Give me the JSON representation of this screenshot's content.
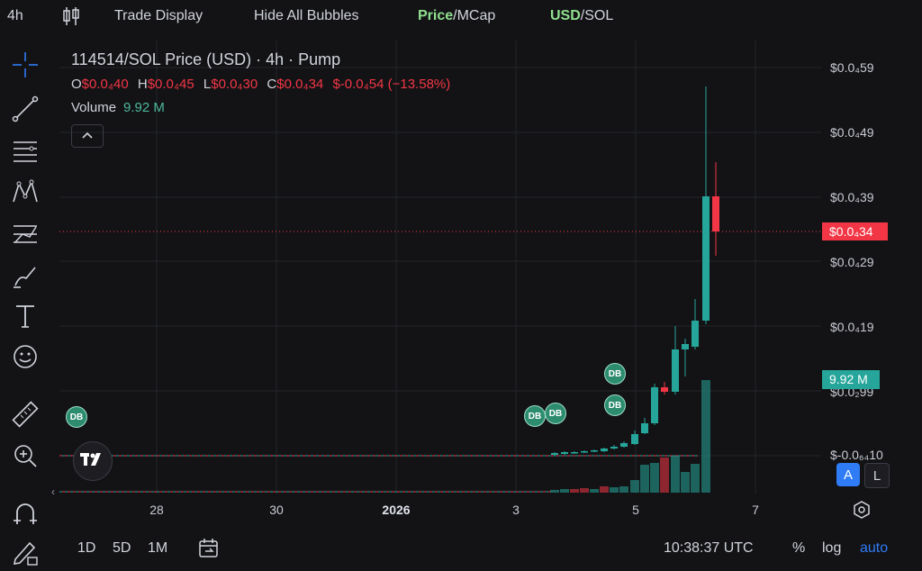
{
  "topbar": {
    "interval": "4h",
    "trade_display": "Trade Display",
    "hide_bubbles": "Hide All Bubbles",
    "price": "Price",
    "mcap": "/MCap",
    "usd": "USD",
    "sol": "/SOL"
  },
  "tools": [
    "crosshair-icon",
    "trend-line-icon",
    "fib-icon",
    "pattern-icon",
    "prediction-icon",
    "brush-icon",
    "text-icon",
    "emoji-icon",
    "ruler-icon",
    "zoom-icon",
    "magnet-icon",
    "lock-draw-icon"
  ],
  "legend": {
    "title": "114514/SOL Price (USD) · 4h · Pump",
    "o_label": "O",
    "o_value": "$0.0₄40",
    "h_label": "H",
    "h_value": "$0.0₄45",
    "l_label": "L",
    "l_value": "$0.0₄30",
    "c_label": "C",
    "c_value": "$0.0₄34",
    "change": "$-0.0₄54 (−13.58%)",
    "volume_label": "Volume",
    "volume_value": "9.92 M"
  },
  "y_axis": [
    {
      "label": "$0.0₄59"
    },
    {
      "label": "$0.0₄49"
    },
    {
      "label": "$0.0₄39"
    },
    {
      "label": "$0.0₄29"
    },
    {
      "label": "$0.0₄19"
    },
    {
      "label": "$0.0₂99"
    },
    {
      "label": "$-0.0₆₄10"
    }
  ],
  "price_tag": "$0.0₄34",
  "volume_tag": "9.92 M",
  "x_axis": [
    {
      "label": "28",
      "bold": false
    },
    {
      "label": "30",
      "bold": false
    },
    {
      "label": "2026",
      "bold": true
    },
    {
      "label": "3",
      "bold": false
    },
    {
      "label": "5",
      "bold": false
    },
    {
      "label": "7",
      "bold": false
    }
  ],
  "bubble_label": "DB",
  "bottombar": {
    "r1d": "1D",
    "r5d": "5D",
    "r1m": "1M",
    "time": "10:38:37 UTC",
    "percent": "%",
    "log": "log",
    "auto": "auto",
    "a_btn": "A",
    "l_btn": "L"
  },
  "colors": {
    "up": "#26a69a",
    "down": "#f23645",
    "bg": "#131316",
    "accent": "#2f7cf6"
  }
}
